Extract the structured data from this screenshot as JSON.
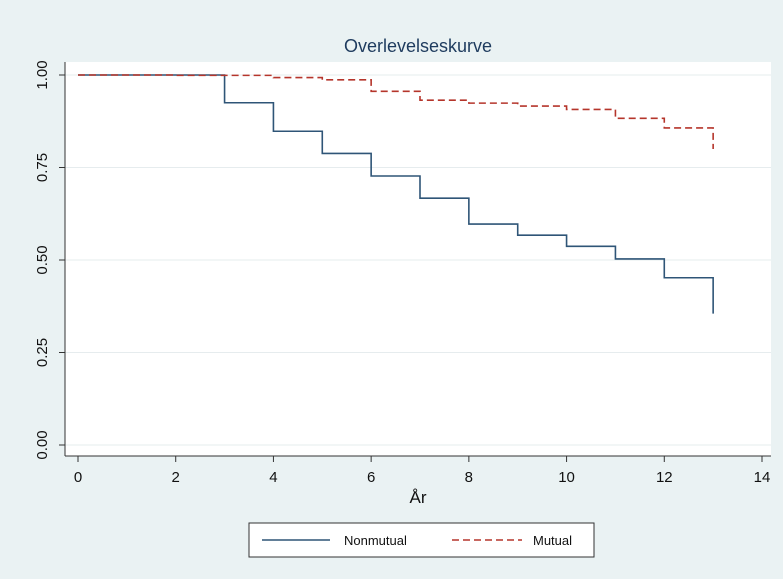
{
  "chart_data": {
    "type": "line",
    "title": "Overlevelseskurve",
    "xlabel": "År",
    "ylabel": "",
    "xlim": [
      0,
      14
    ],
    "ylim": [
      0,
      1
    ],
    "xticks": [
      "0",
      "2",
      "4",
      "6",
      "8",
      "10",
      "12",
      "14"
    ],
    "yticks": [
      "0.00",
      "0.25",
      "0.50",
      "0.75",
      "1.00"
    ],
    "grid": true,
    "legend_position": "bottom",
    "step": true,
    "series": [
      {
        "name": "Nonmutual",
        "color": "#2f5577",
        "dash": "solid",
        "x": [
          0,
          3,
          4,
          5,
          6,
          7,
          8,
          9,
          10,
          11,
          12,
          13,
          13
        ],
        "y": [
          1.0,
          0.925,
          0.848,
          0.788,
          0.727,
          0.667,
          0.597,
          0.567,
          0.537,
          0.503,
          0.452,
          0.452,
          0.355
        ]
      },
      {
        "name": "Mutual",
        "color": "#b5352b",
        "dash": "dashed",
        "x": [
          0,
          2,
          4,
          5,
          6,
          7,
          8,
          9,
          10,
          11,
          12,
          13,
          13
        ],
        "y": [
          1.0,
          0.999,
          0.993,
          0.987,
          0.956,
          0.932,
          0.924,
          0.916,
          0.907,
          0.883,
          0.857,
          0.857,
          0.8
        ]
      }
    ]
  }
}
